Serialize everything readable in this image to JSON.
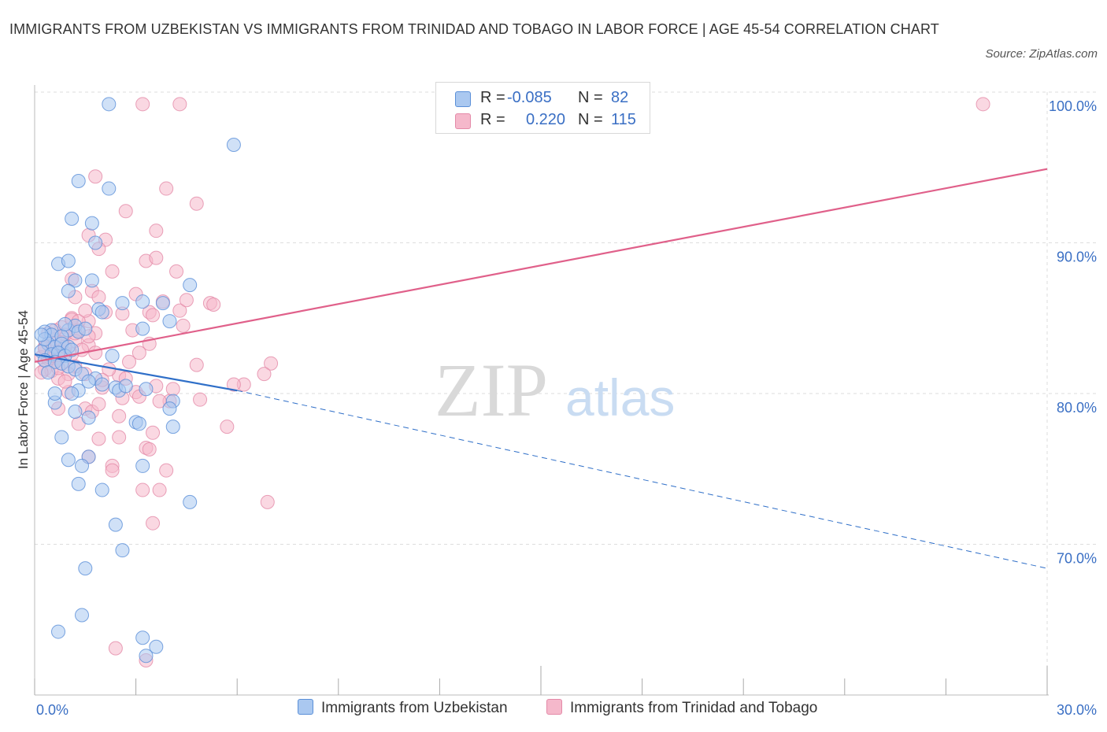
{
  "title": "IMMIGRANTS FROM UZBEKISTAN VS IMMIGRANTS FROM TRINIDAD AND TOBAGO IN LABOR FORCE | AGE 45-54 CORRELATION CHART",
  "source": "Source: ZipAtlas.com",
  "watermark": {
    "zip": "ZIP",
    "atlas": "atlas"
  },
  "legend": {
    "rows": [
      {
        "r_label": "R =",
        "r_value": "-0.085",
        "n_label": "N =",
        "n_value": "82",
        "color": "#aac8f0"
      },
      {
        "r_label": "R =",
        "r_value": "0.220",
        "n_label": "N =",
        "n_value": "115",
        "color": "#f5b8cb"
      }
    ]
  },
  "colors": {
    "blue_fill": "#aac8f0",
    "blue_stroke": "#5a8fd8",
    "blue_line": "#2f6fc8",
    "pink_fill": "#f5b8cb",
    "pink_stroke": "#e48aa8",
    "pink_line": "#e0608a",
    "tick_text": "#3a6fc4",
    "grid": "#dddddd"
  },
  "chart_data": {
    "type": "scatter",
    "title": "IMMIGRANTS FROM UZBEKISTAN VS IMMIGRANTS FROM TRINIDAD AND TOBAGO IN LABOR FORCE | AGE 45-54 CORRELATION CHART",
    "xlabel": "",
    "ylabel": "In Labor Force | Age 45-54",
    "xlim": [
      0,
      30
    ],
    "ylim": [
      60,
      100
    ],
    "x_tick_labels": [
      "0.0%",
      "30.0%"
    ],
    "y_ticks": [
      70,
      80,
      90,
      100
    ],
    "y_tick_labels": [
      "70.0%",
      "80.0%",
      "90.0%",
      "100.0%"
    ],
    "grid": true,
    "legend_position": "top-center",
    "series": [
      {
        "name": "Immigrants from Uzbekistan",
        "color": "#aac8f0",
        "trend": {
          "x": [
            0,
            6
          ],
          "y": [
            82.6,
            80.2
          ],
          "dashed_extension_to": [
            30,
            68.4
          ]
        },
        "points": [
          [
            2.2,
            99.2
          ],
          [
            5.9,
            96.5
          ],
          [
            1.3,
            94.1
          ],
          [
            2.2,
            93.6
          ],
          [
            1.1,
            91.6
          ],
          [
            1.7,
            91.3
          ],
          [
            1.8,
            90.0
          ],
          [
            0.7,
            88.6
          ],
          [
            1.0,
            88.8
          ],
          [
            1.2,
            87.5
          ],
          [
            1.7,
            87.5
          ],
          [
            4.6,
            87.2
          ],
          [
            1.0,
            86.8
          ],
          [
            2.6,
            86.0
          ],
          [
            3.2,
            86.1
          ],
          [
            3.8,
            86.0
          ],
          [
            1.9,
            85.6
          ],
          [
            2.0,
            85.4
          ],
          [
            4.0,
            84.8
          ],
          [
            3.2,
            84.3
          ],
          [
            0.5,
            84.2
          ],
          [
            1.0,
            84.2
          ],
          [
            1.2,
            84.5
          ],
          [
            1.3,
            84.1
          ],
          [
            0.3,
            84.1
          ],
          [
            0.5,
            83.9
          ],
          [
            0.8,
            83.8
          ],
          [
            0.4,
            83.3
          ],
          [
            0.6,
            83.1
          ],
          [
            0.8,
            83.3
          ],
          [
            1.0,
            83.1
          ],
          [
            0.2,
            82.8
          ],
          [
            0.5,
            82.6
          ],
          [
            0.7,
            82.7
          ],
          [
            0.9,
            82.5
          ],
          [
            1.1,
            82.9
          ],
          [
            0.3,
            82.2
          ],
          [
            0.6,
            82.1
          ],
          [
            0.8,
            82.0
          ],
          [
            1.0,
            81.8
          ],
          [
            1.2,
            81.6
          ],
          [
            1.4,
            81.3
          ],
          [
            1.8,
            81.0
          ],
          [
            2.0,
            80.6
          ],
          [
            1.6,
            80.8
          ],
          [
            1.3,
            80.2
          ],
          [
            2.4,
            80.4
          ],
          [
            2.5,
            80.2
          ],
          [
            4.1,
            79.5
          ],
          [
            0.6,
            79.4
          ],
          [
            1.2,
            78.8
          ],
          [
            1.6,
            78.4
          ],
          [
            3.0,
            78.1
          ],
          [
            3.1,
            78.0
          ],
          [
            4.1,
            77.8
          ],
          [
            0.8,
            77.1
          ],
          [
            1.6,
            75.8
          ],
          [
            1.4,
            75.2
          ],
          [
            1.0,
            75.6
          ],
          [
            3.2,
            75.2
          ],
          [
            1.3,
            74.0
          ],
          [
            2.0,
            73.6
          ],
          [
            4.6,
            72.8
          ],
          [
            2.4,
            71.3
          ],
          [
            2.6,
            69.6
          ],
          [
            1.5,
            68.4
          ],
          [
            1.4,
            65.3
          ],
          [
            0.7,
            64.2
          ],
          [
            3.2,
            63.8
          ],
          [
            3.6,
            63.2
          ],
          [
            3.3,
            62.6
          ],
          [
            0.6,
            80.0
          ],
          [
            0.3,
            83.6
          ],
          [
            0.9,
            84.6
          ],
          [
            1.5,
            84.3
          ],
          [
            0.4,
            81.4
          ],
          [
            2.7,
            80.5
          ],
          [
            3.3,
            80.3
          ],
          [
            1.1,
            80.0
          ],
          [
            2.3,
            82.5
          ],
          [
            0.2,
            83.9
          ],
          [
            4.0,
            79.0
          ]
        ]
      },
      {
        "name": "Immigrants from Trinidad and Tobago",
        "color": "#f5b8cb",
        "trend": {
          "x": [
            0,
            30
          ],
          "y": [
            82.1,
            94.9
          ]
        },
        "points": [
          [
            3.2,
            99.2
          ],
          [
            4.3,
            99.2
          ],
          [
            28.1,
            99.2
          ],
          [
            1.8,
            94.4
          ],
          [
            3.9,
            93.6
          ],
          [
            4.8,
            92.6
          ],
          [
            2.7,
            92.1
          ],
          [
            3.6,
            90.8
          ],
          [
            1.6,
            90.5
          ],
          [
            2.1,
            90.2
          ],
          [
            1.9,
            89.6
          ],
          [
            3.3,
            88.8
          ],
          [
            3.6,
            89.0
          ],
          [
            4.2,
            88.1
          ],
          [
            2.3,
            88.1
          ],
          [
            1.1,
            87.6
          ],
          [
            1.7,
            86.8
          ],
          [
            1.2,
            86.4
          ],
          [
            1.9,
            86.4
          ],
          [
            3.0,
            86.6
          ],
          [
            3.8,
            86.1
          ],
          [
            5.2,
            86.0
          ],
          [
            5.3,
            85.9
          ],
          [
            4.3,
            85.5
          ],
          [
            2.1,
            85.4
          ],
          [
            2.6,
            85.3
          ],
          [
            3.4,
            85.4
          ],
          [
            3.5,
            85.2
          ],
          [
            1.1,
            85.0
          ],
          [
            1.6,
            84.8
          ],
          [
            0.8,
            84.4
          ],
          [
            1.3,
            84.2
          ],
          [
            4.4,
            84.5
          ],
          [
            2.9,
            84.2
          ],
          [
            1.8,
            84.0
          ],
          [
            0.9,
            83.9
          ],
          [
            0.6,
            83.6
          ],
          [
            1.2,
            83.5
          ],
          [
            1.6,
            83.2
          ],
          [
            3.4,
            83.3
          ],
          [
            0.3,
            83.1
          ],
          [
            0.5,
            83.0
          ],
          [
            0.7,
            82.8
          ],
          [
            0.9,
            82.7
          ],
          [
            1.1,
            82.6
          ],
          [
            0.2,
            82.4
          ],
          [
            0.4,
            82.3
          ],
          [
            0.6,
            82.1
          ],
          [
            0.8,
            82.0
          ],
          [
            1.2,
            81.8
          ],
          [
            0.3,
            81.6
          ],
          [
            0.5,
            81.5
          ],
          [
            1.0,
            81.3
          ],
          [
            1.5,
            81.3
          ],
          [
            0.7,
            81.0
          ],
          [
            2.5,
            81.2
          ],
          [
            4.8,
            81.9
          ],
          [
            7.0,
            82.0
          ],
          [
            6.8,
            81.3
          ],
          [
            6.2,
            80.6
          ],
          [
            2.0,
            80.4
          ],
          [
            1.0,
            80.1
          ],
          [
            3.0,
            80.1
          ],
          [
            3.1,
            79.8
          ],
          [
            4.0,
            79.5
          ],
          [
            3.7,
            79.5
          ],
          [
            1.5,
            79.0
          ],
          [
            0.7,
            79.0
          ],
          [
            1.7,
            78.8
          ],
          [
            2.5,
            78.5
          ],
          [
            1.3,
            78.0
          ],
          [
            5.7,
            77.8
          ],
          [
            3.5,
            77.4
          ],
          [
            2.5,
            77.1
          ],
          [
            1.9,
            77.0
          ],
          [
            3.3,
            76.4
          ],
          [
            3.4,
            76.3
          ],
          [
            1.6,
            75.8
          ],
          [
            2.3,
            75.2
          ],
          [
            2.3,
            74.9
          ],
          [
            3.9,
            74.9
          ],
          [
            3.2,
            73.6
          ],
          [
            3.7,
            73.6
          ],
          [
            6.9,
            72.8
          ],
          [
            3.5,
            71.4
          ],
          [
            2.4,
            63.1
          ],
          [
            3.3,
            62.3
          ],
          [
            0.9,
            80.8
          ],
          [
            1.4,
            82.9
          ],
          [
            0.4,
            84.0
          ],
          [
            2.8,
            82.1
          ],
          [
            0.6,
            84.2
          ],
          [
            1.1,
            84.9
          ],
          [
            3.6,
            80.5
          ],
          [
            2.2,
            81.6
          ],
          [
            0.2,
            81.4
          ],
          [
            0.8,
            83.4
          ],
          [
            1.8,
            82.7
          ],
          [
            4.9,
            79.6
          ],
          [
            2.0,
            80.9
          ],
          [
            1.3,
            84.8
          ],
          [
            0.5,
            82.5
          ],
          [
            1.6,
            83.8
          ],
          [
            2.7,
            81.0
          ],
          [
            0.3,
            83.0
          ],
          [
            4.5,
            86.2
          ],
          [
            1.9,
            79.3
          ],
          [
            3.1,
            82.7
          ],
          [
            0.7,
            81.7
          ],
          [
            1.5,
            85.5
          ],
          [
            2.6,
            79.7
          ],
          [
            0.9,
            83.1
          ],
          [
            4.1,
            80.3
          ],
          [
            1.2,
            84.0
          ],
          [
            5.9,
            80.6
          ]
        ]
      }
    ]
  },
  "bottom_legend": [
    {
      "label": "Immigrants from Uzbekistan",
      "color": "#aac8f0"
    },
    {
      "label": "Immigrants from Trinidad and Tobago",
      "color": "#f5b8cb"
    }
  ]
}
